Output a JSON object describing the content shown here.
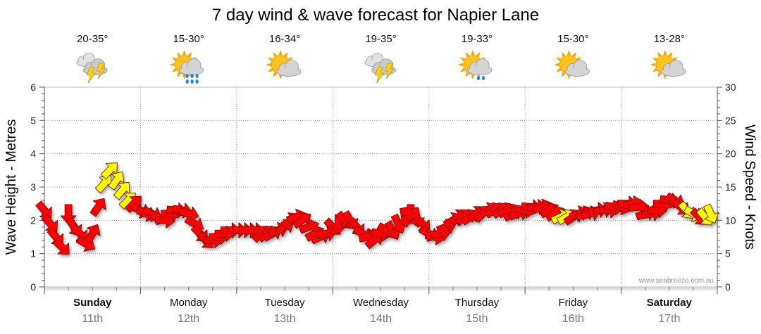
{
  "chart_data": {
    "type": "line",
    "title": "7 day wind & wave forecast for Napier Lane",
    "ylabel_left": "Wave Height - Metres",
    "ylabel_right": "Wind Speed - Knots",
    "ylim_left": [
      0,
      6
    ],
    "ylim_right": [
      0,
      30
    ],
    "yticks_left": [
      "0",
      "1",
      "2",
      "3",
      "4",
      "5",
      "6"
    ],
    "yticks_right": [
      "0",
      "5",
      "10",
      "15",
      "20",
      "25",
      "30"
    ],
    "grid": true,
    "watermark": "www.seabreeze.com.au",
    "days": [
      {
        "name": "Sunday",
        "date": "11th",
        "bold": true,
        "temp": "20-35°",
        "icon": "storm-cloud-icon"
      },
      {
        "name": "Monday",
        "date": "12th",
        "bold": false,
        "temp": "15-30°",
        "icon": "sun-cloud-rain-icon"
      },
      {
        "name": "Tuesday",
        "date": "13th",
        "bold": false,
        "temp": "16-34°",
        "icon": "sun-cloud-icon"
      },
      {
        "name": "Wednesday",
        "date": "14th",
        "bold": false,
        "temp": "19-35°",
        "icon": "storm-cloud-icon"
      },
      {
        "name": "Thursday",
        "date": "15th",
        "bold": false,
        "temp": "19-33°",
        "icon": "sun-cloud-drizzle-icon"
      },
      {
        "name": "Friday",
        "date": "16th",
        "bold": false,
        "temp": "15-30°",
        "icon": "sun-cloud-icon"
      },
      {
        "name": "Saturday",
        "date": "17th",
        "bold": true,
        "temp": "13-28°",
        "icon": "sun-cloud-icon"
      }
    ],
    "wind_series": {
      "name": "Wind speed (knots) with direction arrows",
      "units": "knots",
      "x_days": [
        0.0,
        0.06,
        0.12,
        0.18,
        0.25,
        0.31,
        0.37,
        0.43,
        0.5,
        0.56,
        0.62,
        0.68,
        0.75,
        0.81,
        0.87,
        0.93,
        1.0,
        1.06,
        1.12,
        1.18,
        1.25,
        1.31,
        1.37,
        1.43,
        1.5,
        1.56,
        1.62,
        1.68,
        1.75,
        1.81,
        1.87,
        1.93,
        2.0,
        2.06,
        2.12,
        2.18,
        2.25,
        2.31,
        2.37,
        2.43,
        2.5,
        2.56,
        2.62,
        2.68,
        2.75,
        2.81,
        2.87,
        2.93,
        3.0,
        3.06,
        3.12,
        3.18,
        3.25,
        3.31,
        3.37,
        3.43,
        3.5,
        3.56,
        3.62,
        3.68,
        3.75,
        3.81,
        3.87,
        3.93,
        4.0,
        4.06,
        4.12,
        4.18,
        4.25,
        4.31,
        4.37,
        4.43,
        4.5,
        4.56,
        4.62,
        4.68,
        4.75,
        4.81,
        4.87,
        4.93,
        5.0,
        5.06,
        5.12,
        5.18,
        5.25,
        5.31,
        5.37,
        5.43,
        5.5,
        5.56,
        5.62,
        5.68,
        5.75,
        5.81,
        5.87,
        5.93,
        6.0,
        6.06,
        6.12,
        6.18,
        6.25,
        6.31,
        6.37,
        6.43,
        6.5,
        6.56,
        6.62,
        6.68,
        6.75,
        6.81,
        6.87,
        6.93
      ],
      "values": [
        11.5,
        9.5,
        7.5,
        6.0,
        11.0,
        9.0,
        8.0,
        6.5,
        8.0,
        12.0,
        15.5,
        17.5,
        16.0,
        14.5,
        13.0,
        12.5,
        11.5,
        11.0,
        11.0,
        10.5,
        10.0,
        11.0,
        11.5,
        11.5,
        11.0,
        9.5,
        8.0,
        7.0,
        7.0,
        7.5,
        8.0,
        8.5,
        8.5,
        8.5,
        8.5,
        8.5,
        8.0,
        8.0,
        8.0,
        8.5,
        9.0,
        10.0,
        10.5,
        10.0,
        9.0,
        8.0,
        7.5,
        8.0,
        9.0,
        9.5,
        10.0,
        10.0,
        9.0,
        8.0,
        7.5,
        7.0,
        8.0,
        8.5,
        8.5,
        9.5,
        10.5,
        11.0,
        10.5,
        9.5,
        8.0,
        7.5,
        8.0,
        9.0,
        10.0,
        10.5,
        10.5,
        10.5,
        11.0,
        11.0,
        11.5,
        11.5,
        11.5,
        11.5,
        11.0,
        11.0,
        11.5,
        12.0,
        12.0,
        12.0,
        11.5,
        11.0,
        10.5,
        10.5,
        10.5,
        11.0,
        11.0,
        11.0,
        11.5,
        11.5,
        11.5,
        12.0,
        12.0,
        12.5,
        12.5,
        12.0,
        11.0,
        11.0,
        11.5,
        12.5,
        13.0,
        13.0,
        12.0,
        11.5,
        11.0,
        10.5,
        10.5,
        11.0
      ],
      "direction_deg": [
        320,
        320,
        320,
        315,
        0,
        325,
        315,
        300,
        210,
        215,
        220,
        225,
        215,
        220,
        225,
        225,
        295,
        290,
        295,
        295,
        275,
        270,
        275,
        280,
        285,
        300,
        315,
        315,
        270,
        270,
        270,
        270,
        270,
        270,
        270,
        270,
        225,
        230,
        240,
        250,
        240,
        235,
        250,
        235,
        250,
        240,
        245,
        260,
        315,
        0,
        320,
        330,
        320,
        300,
        260,
        230,
        280,
        300,
        330,
        335,
        350,
        0,
        350,
        315,
        300,
        280,
        260,
        250,
        240,
        230,
        230,
        235,
        230,
        225,
        240,
        240,
        235,
        240,
        240,
        250,
        280,
        275,
        265,
        250,
        240,
        240,
        245,
        240,
        235,
        250,
        245,
        255,
        260,
        260,
        270,
        280,
        290,
        270,
        260,
        265,
        250,
        260,
        270,
        270,
        280,
        300,
        310,
        320,
        300,
        315,
        320,
        335
      ],
      "band": [
        "red",
        "red",
        "red",
        "red",
        "red",
        "red",
        "red",
        "red",
        "red",
        "red",
        "yellow",
        "yellow",
        "yellow",
        "yellow",
        "yellow",
        "red",
        "red",
        "red",
        "red",
        "red",
        "red",
        "red",
        "red",
        "red",
        "red",
        "red",
        "red",
        "red",
        "red",
        "red",
        "red",
        "red",
        "red",
        "red",
        "red",
        "red",
        "red",
        "red",
        "red",
        "red",
        "red",
        "red",
        "red",
        "red",
        "red",
        "red",
        "red",
        "red",
        "red",
        "red",
        "red",
        "red",
        "red",
        "red",
        "red",
        "red",
        "red",
        "red",
        "red",
        "red",
        "red",
        "red",
        "red",
        "red",
        "red",
        "red",
        "red",
        "red",
        "red",
        "red",
        "red",
        "red",
        "red",
        "red",
        "red",
        "red",
        "red",
        "red",
        "red",
        "red",
        "red",
        "red",
        "red",
        "red",
        "red",
        "red",
        "yellow",
        "yellow",
        "red",
        "red",
        "red",
        "red",
        "red",
        "red",
        "red",
        "red",
        "red",
        "red",
        "red",
        "red",
        "red",
        "red",
        "red",
        "red",
        "red",
        "red",
        "red",
        "yellow",
        "yellow",
        "red",
        "yellow",
        "yellow"
      ]
    },
    "colors": {
      "red": "#ff0000",
      "yellow": "#ffff00",
      "arrow_stroke": "#6e0000",
      "grid": "#999999"
    }
  }
}
